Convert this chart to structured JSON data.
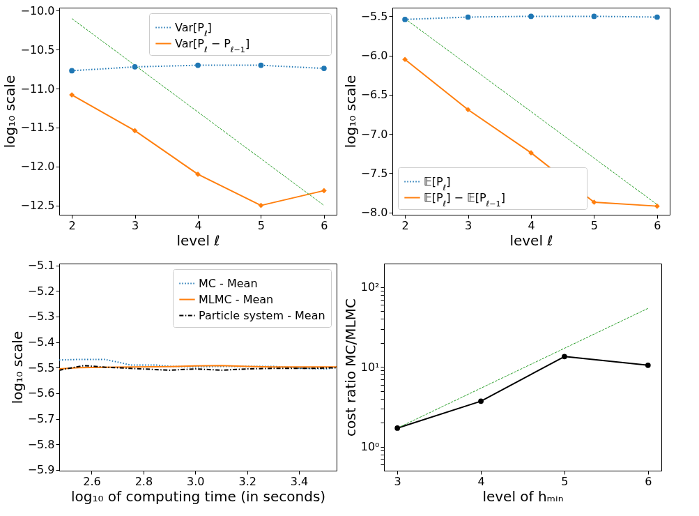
{
  "chart_data": [
    {
      "type": "line",
      "xlabel": "level ℓ",
      "ylabel": "log₁₀ scale",
      "x": [
        2,
        3,
        4,
        5,
        6
      ],
      "xlim": [
        1.8,
        6.2
      ],
      "xticks": [
        2,
        3,
        4,
        5,
        6
      ],
      "ylim": [
        -12.62,
        -9.96
      ],
      "yticks": [
        {
          "value": -10,
          "label": "−10.0"
        },
        {
          "value": -10.5,
          "label": "−10.5"
        },
        {
          "value": -11,
          "label": "−11.0"
        },
        {
          "value": -11.5,
          "label": "−11.5"
        },
        {
          "value": -12,
          "label": "−12.0"
        },
        {
          "value": -12.5,
          "label": "−12.5"
        }
      ],
      "grid": false,
      "legend": "top right",
      "series": [
        {
          "name": "Var[P$_{ℓ}$]",
          "color": "#1f77b4",
          "marker": "circle",
          "line_style": "dotted",
          "values": [
            -10.77,
            -10.72,
            -10.7,
            -10.7,
            -10.74
          ]
        },
        {
          "name": "Var[P$_{ℓ}$ − P$_{ℓ−1}$]",
          "color": "#ff7f0e",
          "marker": "diamond",
          "line_style": "solid",
          "values": [
            -11.08,
            -11.54,
            -12.1,
            -12.5,
            -12.31
          ]
        },
        {
          "color": "#2ca02c",
          "marker": "none",
          "line_style": "dashed",
          "x": [
            2,
            6
          ],
          "values": [
            -10.1,
            -12.5
          ]
        }
      ]
    },
    {
      "type": "line",
      "xlabel": "level ℓ",
      "ylabel": "log₁₀ scale",
      "x": [
        2,
        3,
        4,
        5,
        6
      ],
      "xlim": [
        1.8,
        6.2
      ],
      "xticks": [
        2,
        3,
        4,
        5,
        6
      ],
      "ylim": [
        -8.03,
        -5.39
      ],
      "yticks": [
        {
          "value": -5.5,
          "label": "−5.5"
        },
        {
          "value": -6,
          "label": "−6.0"
        },
        {
          "value": -6.5,
          "label": "−6.5"
        },
        {
          "value": -7,
          "label": "−7.0"
        },
        {
          "value": -7.5,
          "label": "−7.5"
        },
        {
          "value": -8,
          "label": "−8.0"
        }
      ],
      "grid": false,
      "legend": "bottom left",
      "series": [
        {
          "name": "𝔼[P$_{ℓ}$]",
          "color": "#1f77b4",
          "marker": "circle",
          "line_style": "dotted",
          "values": [
            -5.54,
            -5.51,
            -5.5,
            -5.5,
            -5.51
          ]
        },
        {
          "name": "𝔼[P$_{ℓ}$] − 𝔼[P$_{ℓ−1}$]",
          "color": "#ff7f0e",
          "marker": "diamond",
          "line_style": "solid",
          "values": [
            -6.05,
            -6.69,
            -7.24,
            -7.87,
            -7.92
          ]
        },
        {
          "color": "#2ca02c",
          "marker": "none",
          "line_style": "dashed",
          "x": [
            2,
            6
          ],
          "values": [
            -5.53,
            -7.9
          ]
        }
      ]
    },
    {
      "type": "line",
      "xlabel": "log₁₀ of computing time (in seconds)",
      "ylabel": "log₁₀ scale",
      "xlim": [
        2.475,
        3.545
      ],
      "xticks": [
        2.6,
        2.8,
        {
          "value": 3,
          "label": "3.0"
        },
        3.2,
        3.4
      ],
      "ylim": [
        -5.903,
        -5.093
      ],
      "yticks": [
        {
          "value": -5.1,
          "label": "−5.1"
        },
        {
          "value": -5.2,
          "label": "−5.2"
        },
        {
          "value": -5.3,
          "label": "−5.3"
        },
        {
          "value": -5.4,
          "label": "−5.4"
        },
        {
          "value": -5.5,
          "label": "−5.5"
        },
        {
          "value": -5.6,
          "label": "−5.6"
        },
        {
          "value": -5.7,
          "label": "−5.7"
        },
        {
          "value": -5.8,
          "label": "−5.8"
        },
        {
          "value": -5.9,
          "label": "−5.9"
        }
      ],
      "grid": false,
      "legend": "top right",
      "series": [
        {
          "name": "MC - Mean",
          "color": "#1f77b4",
          "marker": "none",
          "line_style": "dotted",
          "x": [
            2.475,
            2.55,
            2.65,
            2.7,
            2.75,
            2.85,
            2.9,
            3.0,
            3.1,
            3.2,
            3.3,
            3.4,
            3.5,
            3.545
          ],
          "values": [
            -5.47,
            -5.468,
            -5.468,
            -5.478,
            -5.49,
            -5.49,
            -5.495,
            -5.497,
            -5.495,
            -5.495,
            -5.495,
            -5.502,
            -5.505,
            -5.5
          ]
        },
        {
          "name": "MLMC - Mean",
          "color": "#ff7f0e",
          "marker": "none",
          "line_style": "solid",
          "x": [
            2.475,
            2.55,
            2.7,
            2.9,
            3.0,
            3.1,
            3.2,
            3.3,
            3.545
          ],
          "values": [
            -5.505,
            -5.5,
            -5.498,
            -5.496,
            -5.493,
            -5.492,
            -5.495,
            -5.497,
            -5.497
          ]
        },
        {
          "name": "Particle system - Mean",
          "color": "#000000",
          "marker": "none",
          "line_style": "dashdot",
          "x": [
            2.475,
            2.5,
            2.57,
            2.65,
            2.75,
            2.9,
            3.0,
            3.1,
            3.2,
            3.3,
            3.45,
            3.545
          ],
          "values": [
            -5.51,
            -5.505,
            -5.492,
            -5.498,
            -5.503,
            -5.51,
            -5.505,
            -5.51,
            -5.505,
            -5.503,
            -5.503,
            -5.5
          ]
        }
      ]
    },
    {
      "type": "line",
      "xlabel": "level of hₘᵢₙ",
      "ylabel": "cost ratio MC/MLMC",
      "log": "y",
      "xlim": [
        2.84,
        6.16
      ],
      "xticks": [
        3,
        4,
        5,
        6
      ],
      "ylim": [
        0.5,
        198
      ],
      "yticks": [
        {
          "value": 0.6,
          "label": null
        },
        {
          "value": 0.7,
          "label": null
        },
        {
          "value": 0.8,
          "label": null
        },
        {
          "value": 0.9,
          "label": null
        },
        {
          "value": 1,
          "label": "10⁰"
        },
        {
          "value": 2,
          "label": null
        },
        {
          "value": 3,
          "label": null
        },
        {
          "value": 4,
          "label": null
        },
        {
          "value": 5,
          "label": null
        },
        {
          "value": 6,
          "label": null
        },
        {
          "value": 7,
          "label": null
        },
        {
          "value": 8,
          "label": null
        },
        {
          "value": 9,
          "label": null
        },
        {
          "value": 10,
          "label": "10¹"
        },
        {
          "value": 20,
          "label": null
        },
        {
          "value": 30,
          "label": null
        },
        {
          "value": 40,
          "label": null
        },
        {
          "value": 50,
          "label": null
        },
        {
          "value": 60,
          "label": null
        },
        {
          "value": 70,
          "label": null
        },
        {
          "value": 80,
          "label": null
        },
        {
          "value": 90,
          "label": null
        },
        {
          "value": 100,
          "label": "10²"
        }
      ],
      "grid": false,
      "series": [
        {
          "color": "#000000",
          "marker": "circle",
          "line_style": "solid",
          "x": [
            3,
            4,
            5,
            6
          ],
          "values": [
            1.71,
            3.72,
            13.5,
            10.5
          ]
        },
        {
          "color": "#2ca02c",
          "marker": "none",
          "line_style": "dashed",
          "x": [
            3,
            6
          ],
          "values": [
            1.71,
            54.3
          ]
        }
      ]
    }
  ]
}
